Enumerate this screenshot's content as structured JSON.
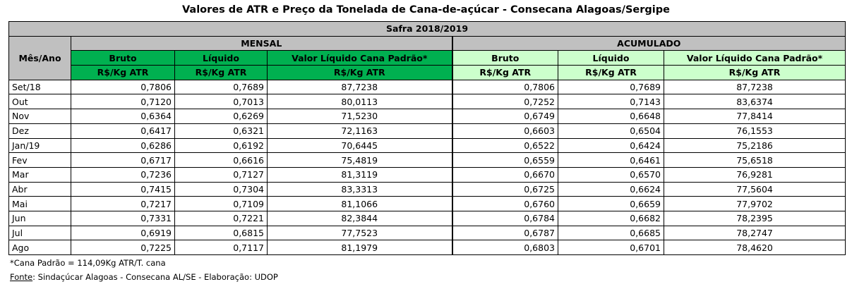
{
  "title": "Valores de ATR e Preço da Tonelada de Cana-de-açúcar - Consecana Alagoas/Sergipe",
  "table": {
    "season": "Safra 2018/2019",
    "month_header": "Mês/Ano",
    "groups": [
      "MENSAL",
      "ACUMULADO"
    ],
    "subheaders": [
      "Bruto",
      "Líquido",
      "Valor Líquido Cana Padrão*",
      "Bruto",
      "Líquido",
      "Valor Líquido Cana Padrão*"
    ],
    "units": [
      "R$/Kg  ATR",
      "R$/Kg  ATR",
      "R$/Kg  ATR",
      "R$/Kg  ATR",
      "R$/Kg  ATR",
      "R$/Kg  ATR"
    ],
    "rows": [
      [
        "Set/18",
        "0,7806",
        "0,7689",
        "87,7238",
        "0,7806",
        "0,7689",
        "87,7238"
      ],
      [
        "Out",
        "0,7120",
        "0,7013",
        "80,0113",
        "0,7252",
        "0,7143",
        "83,6374"
      ],
      [
        "Nov",
        "0,6364",
        "0,6269",
        "71,5230",
        "0,6749",
        "0,6648",
        "77,8414"
      ],
      [
        "Dez",
        "0,6417",
        "0,6321",
        "72,1163",
        "0,6603",
        "0,6504",
        "76,1553"
      ],
      [
        "Jan/19",
        "0,6286",
        "0,6192",
        "70,6445",
        "0,6522",
        "0,6424",
        "75,2186"
      ],
      [
        "Fev",
        "0,6717",
        "0,6616",
        "75,4819",
        "0,6559",
        "0,6461",
        "75,6518"
      ],
      [
        "Mar",
        "0,7236",
        "0,7127",
        "81,3119",
        "0,6670",
        "0,6570",
        "76,9281"
      ],
      [
        "Abr",
        "0,7415",
        "0,7304",
        "83,3313",
        "0,6725",
        "0,6624",
        "77,5604"
      ],
      [
        "Mai",
        "0,7217",
        "0,7109",
        "81,1066",
        "0,6760",
        "0,6659",
        "77,9702"
      ],
      [
        "Jun",
        "0,7331",
        "0,7221",
        "82,3844",
        "0,6784",
        "0,6682",
        "78,2395"
      ],
      [
        "Jul",
        "0,6919",
        "0,6815",
        "77,7523",
        "0,6787",
        "0,6685",
        "78,2747"
      ],
      [
        "Ago",
        "0,7225",
        "0,7117",
        "81,1979",
        "0,6803",
        "0,6701",
        "78,4620"
      ]
    ]
  },
  "footnote": "*Cana Padrão = 114,09Kg ATR/T. cana",
  "source": {
    "label": "Fonte",
    "text": ": Sindaçúcar Alagoas - Consecana AL/SE - Elaboração: UDOP"
  }
}
